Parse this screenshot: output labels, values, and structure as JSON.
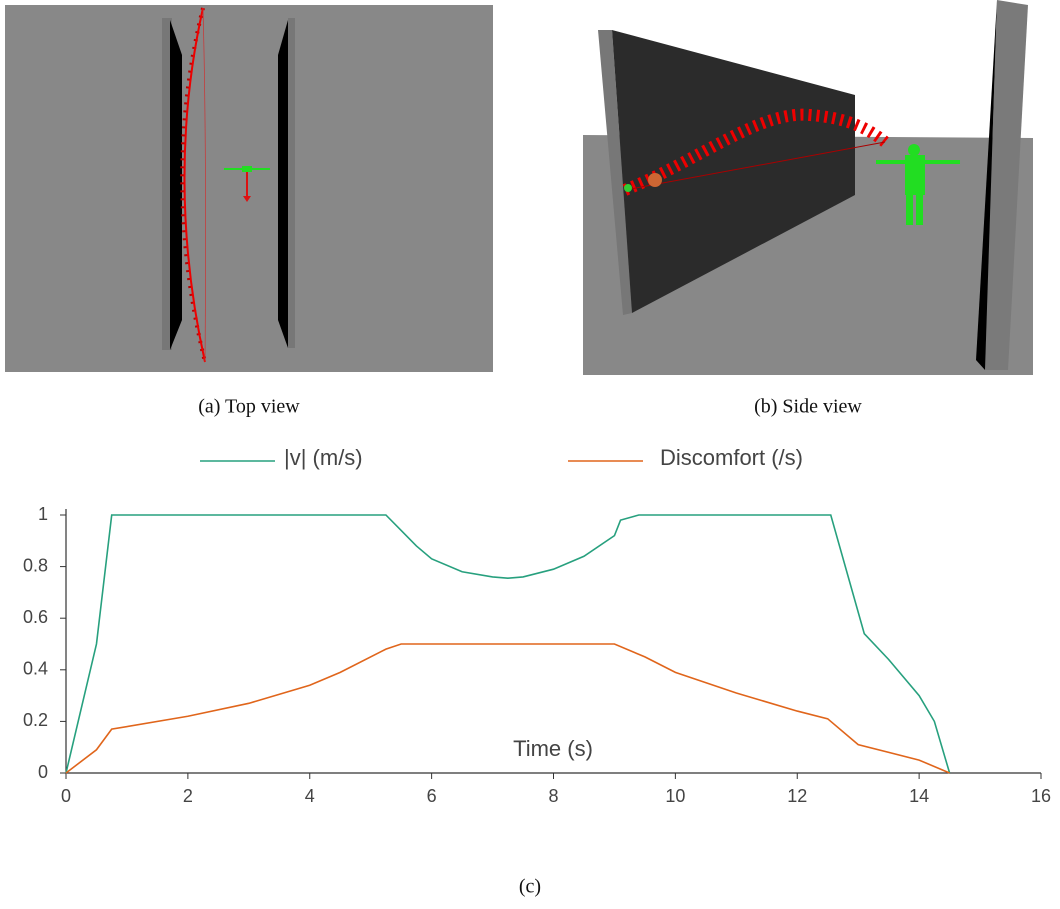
{
  "figure": {
    "captions": [
      "(a) Top view",
      "(b) Side view",
      "(c)"
    ]
  },
  "chart_data": {
    "type": "line",
    "x_label": "Time (s)",
    "xlim": [
      0,
      16
    ],
    "xticks": [
      0,
      2,
      4,
      6,
      8,
      10,
      12,
      14,
      16
    ],
    "ylim": [
      0,
      1
    ],
    "yticks": [
      0,
      0.2,
      0.4,
      0.6,
      0.8,
      1
    ],
    "legend": "top",
    "series": [
      {
        "name": "|v| (m/s)",
        "color": "#27a07e",
        "x": [
          0,
          0.5,
          0.75,
          5.25,
          5.5,
          5.75,
          6,
          6.5,
          7,
          7.25,
          7.5,
          8,
          8.5,
          9,
          9.1,
          9.4,
          12.55,
          13.1,
          13.5,
          14,
          14.25,
          14.5
        ],
        "values": [
          0,
          0.5,
          1,
          1,
          0.94,
          0.88,
          0.83,
          0.78,
          0.76,
          0.755,
          0.76,
          0.79,
          0.84,
          0.92,
          0.98,
          1,
          1,
          0.54,
          0.44,
          0.3,
          0.2,
          0
        ]
      },
      {
        "name": "Discomfort (/s)",
        "color": "#e0651b",
        "x": [
          0,
          0.5,
          0.75,
          2,
          3,
          4,
          4.5,
          5.25,
          5.5,
          9,
          9.5,
          10,
          11,
          12,
          12.5,
          13,
          14,
          14.5
        ],
        "values": [
          0,
          0.09,
          0.17,
          0.22,
          0.27,
          0.34,
          0.39,
          0.48,
          0.5,
          0.5,
          0.45,
          0.39,
          0.31,
          0.24,
          0.21,
          0.11,
          0.05,
          0
        ]
      }
    ]
  }
}
